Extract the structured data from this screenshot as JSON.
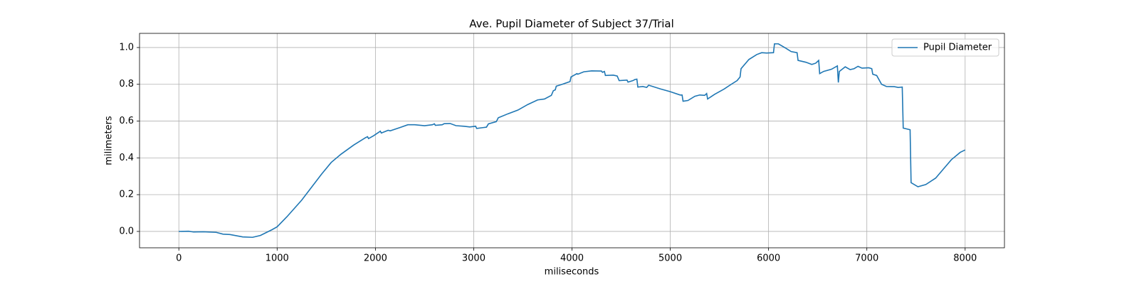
{
  "chart_data": {
    "type": "line",
    "title": "Ave. Pupil Diameter of Subject 37/Trial",
    "xlabel": "miliseconds",
    "ylabel": "milimeters",
    "x": [
      0,
      100,
      150,
      250,
      380,
      450,
      520,
      650,
      750,
      830,
      950,
      1000,
      1100,
      1250,
      1350,
      1450,
      1550,
      1650,
      1780,
      1900,
      1920,
      1930,
      1980,
      2050,
      2060,
      2130,
      2150,
      2250,
      2330,
      2400,
      2500,
      2580,
      2600,
      2610,
      2680,
      2700,
      2760,
      2820,
      2900,
      2960,
      3020,
      3030,
      3100,
      3130,
      3150,
      3230,
      3250,
      3350,
      3450,
      3550,
      3650,
      3720,
      3790,
      3810,
      3830,
      3840,
      3900,
      3980,
      3990,
      4050,
      4060,
      4120,
      4200,
      4300,
      4310,
      4330,
      4340,
      4420,
      4460,
      4480,
      4560,
      4570,
      4620,
      4640,
      4660,
      4670,
      4720,
      4760,
      4780,
      4900,
      5000,
      5100,
      5120,
      5130,
      5180,
      5250,
      5300,
      5350,
      5370,
      5380,
      5450,
      5550,
      5620,
      5680,
      5710,
      5720,
      5800,
      5880,
      5930,
      5980,
      6050,
      6060,
      6100,
      6170,
      6230,
      6290,
      6300,
      6380,
      6440,
      6480,
      6510,
      6520,
      6560,
      6640,
      6700,
      6710,
      6720,
      6780,
      6830,
      6870,
      6910,
      6950,
      7020,
      7050,
      7060,
      7100,
      7150,
      7200,
      7280,
      7320,
      7360,
      7370,
      7440,
      7450,
      7520,
      7600,
      7700,
      7780,
      7860,
      7950,
      8000
    ],
    "series": [
      {
        "name": "Pupil Diameter",
        "color": "#1f77b4",
        "values": [
          0,
          0.001,
          -0.003,
          -0.002,
          -0.005,
          -0.015,
          -0.017,
          -0.03,
          -0.032,
          -0.022,
          0.01,
          0.025,
          0.08,
          0.17,
          0.24,
          0.31,
          0.375,
          0.42,
          0.47,
          0.51,
          0.515,
          0.505,
          0.52,
          0.545,
          0.535,
          0.55,
          0.547,
          0.565,
          0.58,
          0.58,
          0.575,
          0.58,
          0.585,
          0.577,
          0.58,
          0.586,
          0.587,
          0.575,
          0.572,
          0.568,
          0.572,
          0.56,
          0.565,
          0.567,
          0.585,
          0.597,
          0.618,
          0.64,
          0.66,
          0.69,
          0.715,
          0.72,
          0.74,
          0.765,
          0.77,
          0.79,
          0.8,
          0.815,
          0.84,
          0.858,
          0.855,
          0.868,
          0.873,
          0.872,
          0.865,
          0.87,
          0.848,
          0.85,
          0.845,
          0.82,
          0.823,
          0.812,
          0.82,
          0.826,
          0.828,
          0.785,
          0.788,
          0.783,
          0.795,
          0.775,
          0.76,
          0.742,
          0.742,
          0.708,
          0.712,
          0.735,
          0.742,
          0.74,
          0.75,
          0.72,
          0.745,
          0.775,
          0.8,
          0.82,
          0.84,
          0.885,
          0.935,
          0.962,
          0.972,
          0.97,
          0.972,
          1.02,
          1.02,
          0.998,
          0.978,
          0.972,
          0.93,
          0.92,
          0.908,
          0.915,
          0.93,
          0.858,
          0.87,
          0.882,
          0.9,
          0.81,
          0.87,
          0.895,
          0.88,
          0.885,
          0.898,
          0.888,
          0.89,
          0.885,
          0.855,
          0.848,
          0.8,
          0.788,
          0.787,
          0.783,
          0.785,
          0.562,
          0.553,
          0.265,
          0.243,
          0.255,
          0.29,
          0.34,
          0.39,
          0.43,
          0.443
        ]
      }
    ],
    "xlim": [
      -400,
      8400
    ],
    "xticks": [
      0,
      1000,
      2000,
      3000,
      4000,
      5000,
      6000,
      7000,
      8000
    ],
    "ylim": [
      -0.089,
      1.077
    ],
    "yticks": [
      {
        "value": 0,
        "label": "0.0"
      },
      0.2,
      0.4,
      0.6,
      0.8,
      {
        "value": 1,
        "label": "1.0"
      }
    ],
    "grid": true,
    "legend": "upper right"
  }
}
